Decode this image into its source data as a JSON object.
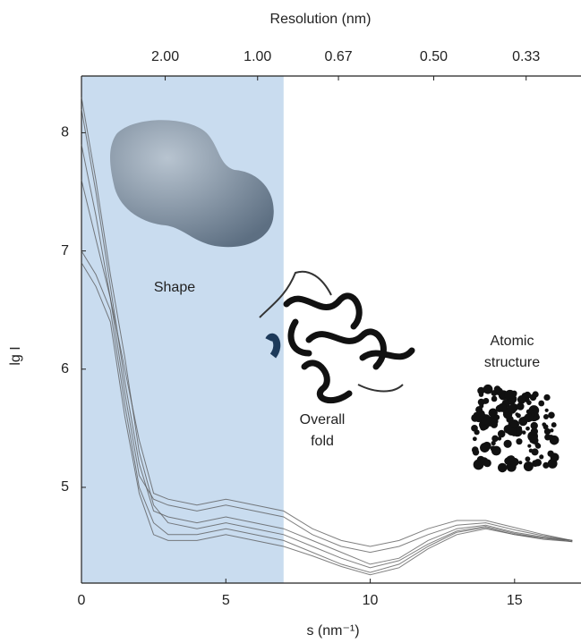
{
  "chart_data": {
    "type": "line",
    "title": "Resolution (nm)",
    "x_label": "s (nm⁻¹)",
    "y_label": "lg I",
    "xlim": [
      0,
      17.3
    ],
    "ylim": [
      4.19,
      8.48
    ],
    "xticks": [
      0,
      5,
      10,
      15
    ],
    "yticks": [
      5,
      6,
      7,
      8
    ],
    "x2ticks": [
      {
        "value": 2.9,
        "label": "2.00"
      },
      {
        "value": 6.1,
        "label": "1.00"
      },
      {
        "value": 8.9,
        "label": "0.67"
      },
      {
        "value": 12.2,
        "label": "0.50"
      },
      {
        "value": 15.4,
        "label": "0.33"
      }
    ],
    "shaded_range": [
      0,
      7
    ],
    "shade_color": "#c9dcef",
    "line_color": "#555555",
    "annotations": {
      "shape": [
        "Shape"
      ],
      "fold": [
        "Overall",
        "fold"
      ],
      "atomic": [
        "Atomic",
        "structure"
      ]
    },
    "x": [
      0,
      0.5,
      1,
      1.5,
      2,
      2.5,
      3,
      4,
      5,
      6,
      7,
      8,
      9,
      10,
      11,
      12,
      13,
      14,
      15,
      16,
      17
    ],
    "series": [
      {
        "color": "#555555",
        "values": [
          8.2,
          7.5,
          6.7,
          5.9,
          5.2,
          4.8,
          4.75,
          4.7,
          4.75,
          4.7,
          4.65,
          4.55,
          4.45,
          4.35,
          4.4,
          4.55,
          4.65,
          4.68,
          4.62,
          4.58,
          4.55
        ]
      },
      {
        "color": "#555555",
        "values": [
          7.9,
          7.3,
          6.6,
          5.8,
          5.1,
          4.9,
          4.85,
          4.8,
          4.85,
          4.8,
          4.75,
          4.6,
          4.5,
          4.45,
          4.5,
          4.6,
          4.68,
          4.7,
          4.64,
          4.59,
          4.55
        ]
      },
      {
        "color": "#555555",
        "values": [
          7.0,
          6.8,
          6.5,
          5.7,
          5.0,
          4.7,
          4.6,
          4.6,
          4.65,
          4.6,
          4.55,
          4.45,
          4.35,
          4.28,
          4.35,
          4.5,
          4.62,
          4.66,
          4.6,
          4.57,
          4.55
        ]
      },
      {
        "color": "#555555",
        "values": [
          7.6,
          7.1,
          6.6,
          6.0,
          5.4,
          4.95,
          4.9,
          4.85,
          4.9,
          4.85,
          4.8,
          4.65,
          4.55,
          4.5,
          4.55,
          4.65,
          4.72,
          4.72,
          4.66,
          4.6,
          4.55
        ]
      },
      {
        "color": "#555555",
        "values": [
          8.3,
          7.6,
          6.8,
          6.1,
          5.3,
          4.85,
          4.7,
          4.65,
          4.7,
          4.65,
          4.6,
          4.5,
          4.4,
          4.32,
          4.38,
          4.52,
          4.63,
          4.67,
          4.61,
          4.57,
          4.54
        ]
      },
      {
        "color": "#555555",
        "values": [
          6.9,
          6.7,
          6.4,
          5.6,
          4.95,
          4.6,
          4.55,
          4.55,
          4.6,
          4.55,
          4.5,
          4.42,
          4.33,
          4.26,
          4.32,
          4.48,
          4.6,
          4.65,
          4.6,
          4.56,
          4.54
        ]
      }
    ]
  }
}
